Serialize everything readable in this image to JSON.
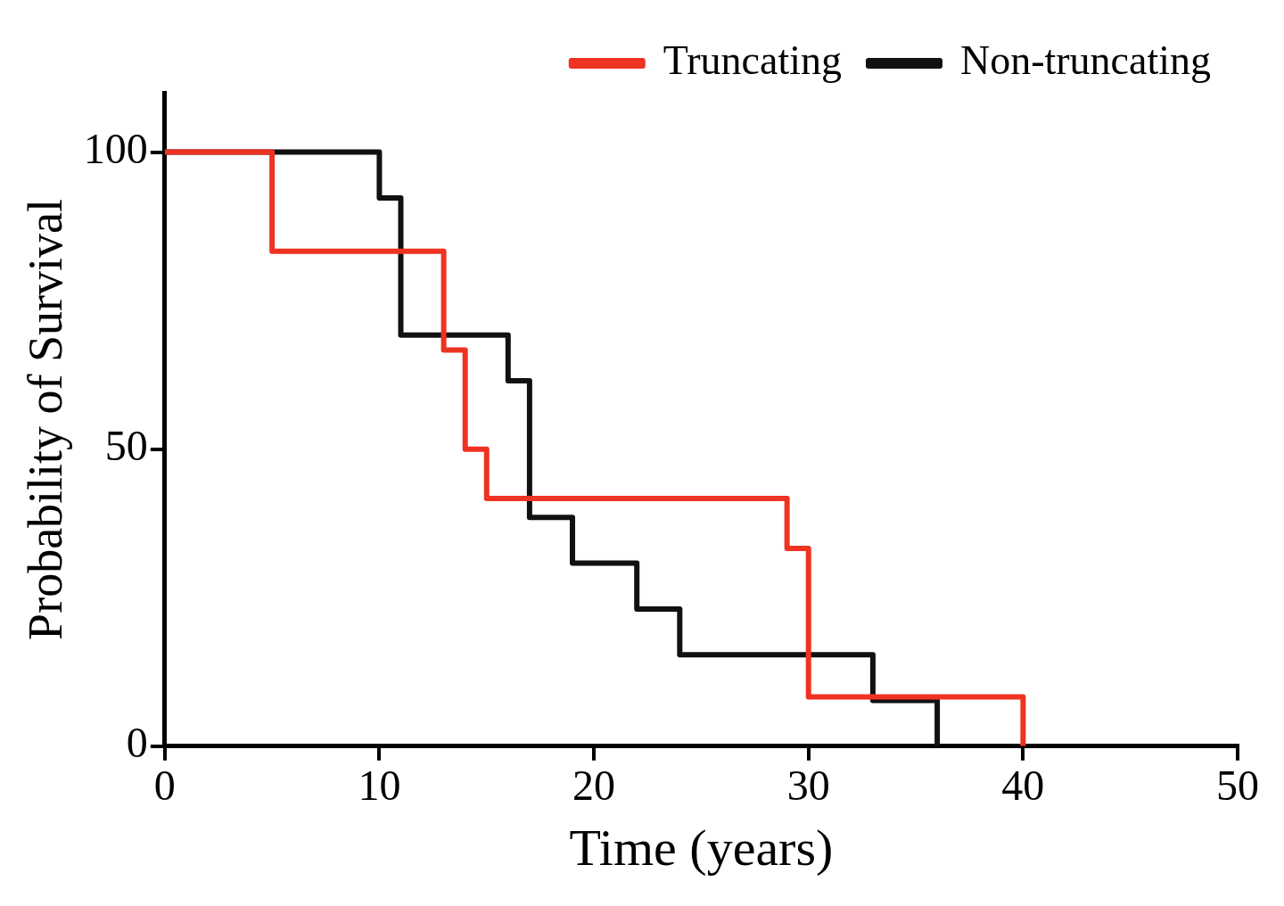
{
  "chart_data": {
    "type": "step",
    "xlabel": "Time (years)",
    "ylabel": "Probability of Survival",
    "xlim": [
      0,
      50
    ],
    "xticks": [
      0,
      10,
      20,
      30,
      40,
      50
    ],
    "ylim": [
      0,
      110
    ],
    "yticks": [
      0,
      50,
      100
    ],
    "series": [
      {
        "name": "Truncating",
        "color": "#ee3322",
        "x": [
          0,
          5,
          13,
          14,
          15,
          29,
          30,
          40
        ],
        "values": [
          100,
          83.3,
          66.7,
          50,
          41.7,
          33.3,
          8.3,
          0
        ]
      },
      {
        "name": "Non-truncating",
        "color": "#111111",
        "x": [
          0,
          10,
          11,
          16,
          17,
          19,
          22,
          24,
          33,
          36
        ],
        "values": [
          100,
          92.3,
          69.2,
          61.5,
          38.5,
          30.8,
          23.1,
          15.4,
          7.7,
          0
        ]
      }
    ],
    "grid": false,
    "legend": "top right",
    "marker": "none",
    "line_style": "solid"
  }
}
